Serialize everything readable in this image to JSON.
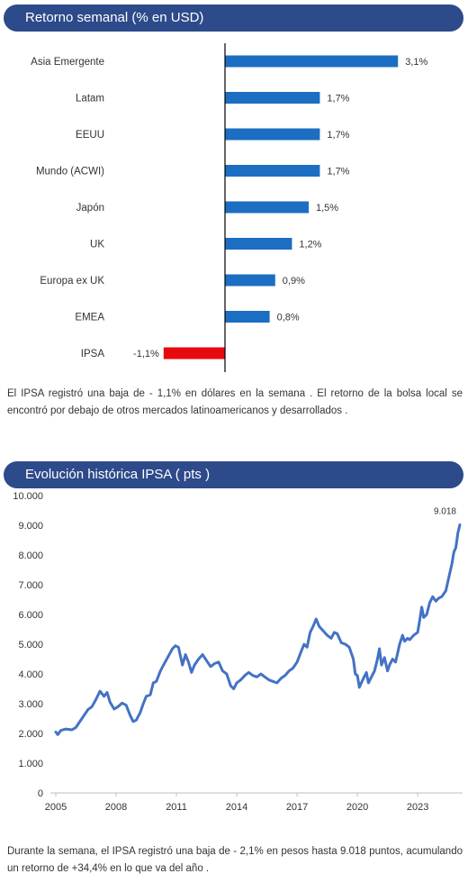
{
  "section1": {
    "title": "Retorno semanal (% en USD)"
  },
  "section2": {
    "title": "Evolución histórica IPSA ( pts )"
  },
  "paragraph1": "El IPSA registró una baja de - 1,1% en dólares en la semana . El retorno de la bolsa local se encontró por debajo de otros mercados latinoamericanos y desarrollados .",
  "paragraph2": "Durante la semana, el IPSA registró una baja de - 2,1% en pesos hasta 9.018 puntos, acumulando un retorno de +34,4% en lo que va del año .",
  "colors": {
    "positive": "#1b6ec2",
    "negative": "#e8090f",
    "line": "#4472c4",
    "header": "#2d4a8a"
  },
  "chart_data": [
    {
      "type": "bar",
      "orientation": "horizontal",
      "categories": [
        "Asia Emergente",
        "Latam",
        "EEUU",
        "Mundo (ACWI)",
        "Japón",
        "UK",
        "Europa ex UK",
        "EMEA",
        "IPSA"
      ],
      "values": [
        3.1,
        1.7,
        1.7,
        1.7,
        1.5,
        1.2,
        0.9,
        0.8,
        -1.1
      ],
      "value_labels": [
        "3,1%",
        "1,7%",
        "1,7%",
        "1,7%",
        "1,5%",
        "1,2%",
        "0,9%",
        "0,8%",
        "-1,1%"
      ],
      "xlim": [
        -1.1,
        3.1
      ]
    },
    {
      "type": "line",
      "x_ticks": [
        "2005",
        "2008",
        "2011",
        "2014",
        "2017",
        "2020",
        "2023"
      ],
      "y_ticks": [
        "0",
        "1.000",
        "2.000",
        "3.000",
        "4.000",
        "5.000",
        "6.000",
        "7.000",
        "8.000",
        "9.000",
        "10.000"
      ],
      "ylim": [
        0,
        10000
      ],
      "xlim": [
        2005,
        2025.1
      ],
      "end_label": "9.018",
      "series": [
        {
          "points": [
            [
              2005.0,
              2050
            ],
            [
              2005.1,
              1960
            ],
            [
              2005.25,
              2100
            ],
            [
              2005.5,
              2150
            ],
            [
              2005.8,
              2120
            ],
            [
              2006.0,
              2200
            ],
            [
              2006.3,
              2500
            ],
            [
              2006.6,
              2800
            ],
            [
              2006.8,
              2900
            ],
            [
              2007.0,
              3150
            ],
            [
              2007.2,
              3420
            ],
            [
              2007.4,
              3250
            ],
            [
              2007.55,
              3380
            ],
            [
              2007.7,
              3050
            ],
            [
              2007.9,
              2820
            ],
            [
              2008.1,
              2900
            ],
            [
              2008.3,
              3020
            ],
            [
              2008.5,
              2950
            ],
            [
              2008.7,
              2600
            ],
            [
              2008.85,
              2400
            ],
            [
              2009.0,
              2450
            ],
            [
              2009.2,
              2700
            ],
            [
              2009.35,
              3000
            ],
            [
              2009.5,
              3250
            ],
            [
              2009.7,
              3300
            ],
            [
              2009.85,
              3700
            ],
            [
              2010.0,
              3750
            ],
            [
              2010.2,
              4100
            ],
            [
              2010.4,
              4350
            ],
            [
              2010.6,
              4600
            ],
            [
              2010.8,
              4850
            ],
            [
              2010.95,
              4950
            ],
            [
              2011.1,
              4900
            ],
            [
              2011.3,
              4300
            ],
            [
              2011.45,
              4650
            ],
            [
              2011.6,
              4400
            ],
            [
              2011.75,
              4050
            ],
            [
              2011.9,
              4300
            ],
            [
              2012.1,
              4500
            ],
            [
              2012.3,
              4650
            ],
            [
              2012.5,
              4450
            ],
            [
              2012.7,
              4250
            ],
            [
              2012.9,
              4350
            ],
            [
              2013.1,
              4400
            ],
            [
              2013.3,
              4100
            ],
            [
              2013.5,
              4000
            ],
            [
              2013.7,
              3600
            ],
            [
              2013.85,
              3500
            ],
            [
              2014.0,
              3700
            ],
            [
              2014.2,
              3800
            ],
            [
              2014.4,
              3950
            ],
            [
              2014.6,
              4050
            ],
            [
              2014.8,
              3950
            ],
            [
              2015.0,
              3900
            ],
            [
              2015.2,
              4000
            ],
            [
              2015.4,
              3900
            ],
            [
              2015.6,
              3800
            ],
            [
              2015.8,
              3750
            ],
            [
              2016.0,
              3700
            ],
            [
              2016.2,
              3850
            ],
            [
              2016.4,
              3950
            ],
            [
              2016.6,
              4100
            ],
            [
              2016.8,
              4200
            ],
            [
              2017.0,
              4400
            ],
            [
              2017.2,
              4750
            ],
            [
              2017.35,
              5000
            ],
            [
              2017.5,
              4900
            ],
            [
              2017.65,
              5400
            ],
            [
              2017.8,
              5600
            ],
            [
              2017.95,
              5850
            ],
            [
              2018.1,
              5600
            ],
            [
              2018.3,
              5450
            ],
            [
              2018.5,
              5300
            ],
            [
              2018.7,
              5200
            ],
            [
              2018.85,
              5400
            ],
            [
              2019.0,
              5350
            ],
            [
              2019.2,
              5050
            ],
            [
              2019.4,
              5000
            ],
            [
              2019.6,
              4900
            ],
            [
              2019.8,
              4500
            ],
            [
              2019.9,
              4000
            ],
            [
              2020.0,
              3950
            ],
            [
              2020.1,
              3550
            ],
            [
              2020.2,
              3700
            ],
            [
              2020.3,
              3850
            ],
            [
              2020.45,
              4050
            ],
            [
              2020.55,
              3700
            ],
            [
              2020.7,
              3900
            ],
            [
              2020.85,
              4100
            ],
            [
              2021.0,
              4500
            ],
            [
              2021.1,
              4850
            ],
            [
              2021.2,
              4300
            ],
            [
              2021.35,
              4550
            ],
            [
              2021.5,
              4100
            ],
            [
              2021.6,
              4300
            ],
            [
              2021.75,
              4500
            ],
            [
              2021.9,
              4400
            ],
            [
              2022.0,
              4700
            ],
            [
              2022.1,
              5000
            ],
            [
              2022.25,
              5300
            ],
            [
              2022.35,
              5100
            ],
            [
              2022.5,
              5200
            ],
            [
              2022.6,
              5150
            ],
            [
              2022.8,
              5300
            ],
            [
              2023.0,
              5400
            ],
            [
              2023.1,
              5800
            ],
            [
              2023.2,
              6250
            ],
            [
              2023.3,
              5900
            ],
            [
              2023.45,
              6000
            ],
            [
              2023.6,
              6400
            ],
            [
              2023.75,
              6600
            ],
            [
              2023.9,
              6450
            ],
            [
              2024.05,
              6550
            ],
            [
              2024.2,
              6600
            ],
            [
              2024.4,
              6800
            ],
            [
              2024.55,
              7250
            ],
            [
              2024.7,
              7700
            ],
            [
              2024.8,
              8100
            ],
            [
              2024.9,
              8250
            ],
            [
              2025.0,
              8750
            ],
            [
              2025.1,
              9018
            ]
          ]
        }
      ]
    }
  ]
}
